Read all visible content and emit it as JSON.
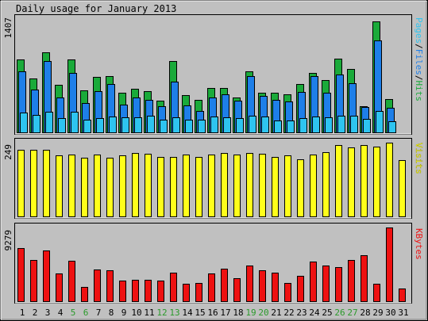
{
  "title": "Daily usage for January 2013",
  "colors": {
    "hits": "#1aaa3a",
    "files": "#1e7fe8",
    "pages": "#2ec4f0",
    "visits": "#ffff1a",
    "kbytes": "#ee1111",
    "weekday_label": "#000000",
    "weekend_label": "#2a9a2a",
    "background": "#c0c0c0"
  },
  "legend": {
    "pages": "Pages",
    "files": "Files",
    "hits": "Hits",
    "sep": "/",
    "visits": "Visits",
    "kbytes": "KBytes"
  },
  "chart_data": [
    {
      "type": "bar",
      "name": "hits-files-pages",
      "ymax_label": "1407",
      "ylim": [
        0,
        1407
      ],
      "categories": [
        "1",
        "2",
        "3",
        "4",
        "5",
        "6",
        "7",
        "8",
        "9",
        "10",
        "11",
        "12",
        "13",
        "14",
        "15",
        "16",
        "17",
        "18",
        "19",
        "20",
        "21",
        "22",
        "23",
        "24",
        "25",
        "26",
        "27",
        "28",
        "29",
        "30",
        "31"
      ],
      "weekend_days": [
        "5",
        "6",
        "12",
        "13",
        "19",
        "20",
        "26",
        "27"
      ],
      "series": [
        {
          "name": "Hits",
          "values": [
            887,
            659,
            974,
            575,
            887,
            509,
            676,
            685,
            483,
            526,
            502,
            385,
            863,
            454,
            392,
            543,
            543,
            425,
            739,
            484,
            484,
            464,
            589,
            720,
            640,
            896,
            771,
            322,
            1352,
            404,
            0
          ]
        },
        {
          "name": "Files",
          "values": [
            741,
            523,
            864,
            424,
            726,
            353,
            502,
            592,
            339,
            424,
            394,
            319,
            618,
            330,
            264,
            425,
            459,
            388,
            689,
            442,
            396,
            372,
            490,
            688,
            480,
            700,
            601,
            309,
            1118,
            300,
            0
          ]
        },
        {
          "name": "Pages",
          "values": [
            238,
            209,
            254,
            171,
            249,
            158,
            170,
            189,
            180,
            186,
            199,
            159,
            180,
            152,
            159,
            194,
            179,
            173,
            201,
            197,
            145,
            149,
            173,
            193,
            184,
            201,
            201,
            161,
            262,
            133,
            0
          ]
        }
      ]
    },
    {
      "type": "bar",
      "name": "visits",
      "ymax_label": "249",
      "ylim": [
        0,
        249
      ],
      "categories": [
        "1",
        "2",
        "3",
        "4",
        "5",
        "6",
        "7",
        "8",
        "9",
        "10",
        "11",
        "12",
        "13",
        "14",
        "15",
        "16",
        "17",
        "18",
        "19",
        "20",
        "21",
        "22",
        "23",
        "24",
        "25",
        "26",
        "27",
        "28",
        "29",
        "30",
        "31"
      ],
      "series": [
        {
          "name": "Visits",
          "values": [
            226,
            224,
            224,
            206,
            208,
            198,
            210,
            199,
            206,
            214,
            212,
            201,
            201,
            209,
            202,
            210,
            214,
            210,
            214,
            212,
            201,
            206,
            192,
            210,
            217,
            241,
            232,
            240,
            235,
            249,
            190
          ]
        }
      ]
    },
    {
      "type": "bar",
      "name": "kbytes",
      "ymax_label": "9279",
      "ylim": [
        0,
        9279
      ],
      "categories": [
        "1",
        "2",
        "3",
        "4",
        "5",
        "6",
        "7",
        "8",
        "9",
        "10",
        "11",
        "12",
        "13",
        "14",
        "15",
        "16",
        "17",
        "18",
        "19",
        "20",
        "21",
        "22",
        "23",
        "24",
        "25",
        "26",
        "27",
        "28",
        "29",
        "30",
        "31"
      ],
      "series": [
        {
          "name": "KBytes",
          "values": [
            6700,
            5200,
            6400,
            3500,
            5100,
            1800,
            4000,
            3900,
            2600,
            2700,
            2700,
            2600,
            3600,
            2200,
            2300,
            3500,
            4100,
            2900,
            4500,
            3900,
            3600,
            2300,
            3200,
            5000,
            4500,
            4300,
            5200,
            5800,
            2200,
            9279,
            1600
          ]
        }
      ]
    }
  ]
}
